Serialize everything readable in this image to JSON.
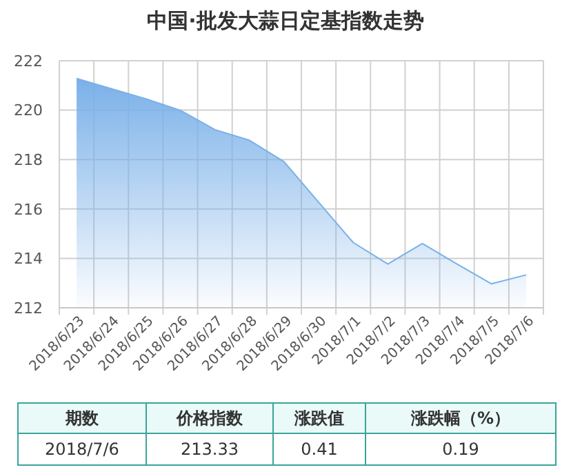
{
  "chart_data": {
    "type": "area",
    "title": "中国·批发大蒜日定基指数走势",
    "categories": [
      "2018/6/23",
      "2018/6/24",
      "2018/6/25",
      "2018/6/26",
      "2018/6/27",
      "2018/6/28",
      "2018/6/29",
      "2018/6/30",
      "2018/7/1",
      "2018/7/2",
      "2018/7/3",
      "2018/7/4",
      "2018/7/5",
      "2018/7/6"
    ],
    "series": [
      {
        "color": "#7ab0e8",
        "values": [
          221.28,
          220.87,
          220.46,
          219.99,
          219.21,
          218.78,
          217.91,
          216.27,
          214.64,
          213.77,
          214.6,
          213.77,
          212.97,
          213.33
        ]
      }
    ],
    "ylim": [
      212,
      222
    ],
    "yticks": [
      212,
      214,
      216,
      218,
      220,
      222
    ],
    "grid": true,
    "annotations": [
      "期数",
      "价格指数",
      "涨跌值",
      "涨跌幅（%）",
      "2018/7/6",
      "213.33",
      "0.41",
      "0.19"
    ]
  }
}
